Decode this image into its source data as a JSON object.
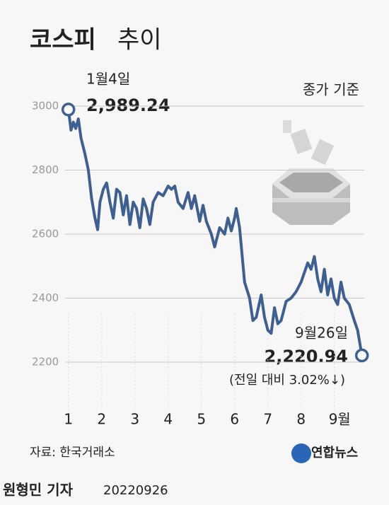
{
  "chart_data": {
    "type": "line",
    "title": "코스피",
    "title_suffix": "추이",
    "note": "종가 기준",
    "annotations": {
      "start_date": "1월4일",
      "start_value": "2,989.24",
      "end_date": "9월26일",
      "end_value": "2,220.94",
      "end_change": "(전일 대비 3.02%↓)"
    },
    "source": "자료: 한국거래소",
    "logo": "연합뉴스",
    "byline": "원형민 기자",
    "date": "20220926",
    "x": [
      1.0,
      1.08,
      1.15,
      1.22,
      1.3,
      1.38,
      1.5,
      1.6,
      1.7,
      1.8,
      1.88,
      1.95,
      2.05,
      2.15,
      2.25,
      2.35,
      2.45,
      2.55,
      2.65,
      2.75,
      2.85,
      2.95,
      3.05,
      3.15,
      3.25,
      3.35,
      3.45,
      3.55,
      3.7,
      3.85,
      4.0,
      4.1,
      4.2,
      4.3,
      4.45,
      4.6,
      4.7,
      4.8,
      4.95,
      5.05,
      5.15,
      5.3,
      5.4,
      5.55,
      5.7,
      5.8,
      5.9,
      6.0,
      6.05,
      6.15,
      6.3,
      6.45,
      6.55,
      6.65,
      6.8,
      6.9,
      7.0,
      7.1,
      7.2,
      7.3,
      7.4,
      7.55,
      7.7,
      7.85,
      8.0,
      8.1,
      8.2,
      8.3,
      8.4,
      8.5,
      8.6,
      8.7,
      8.8,
      8.9,
      9.0,
      9.1,
      9.2,
      9.3,
      9.45,
      9.6,
      9.7,
      9.83
    ],
    "series": [
      {
        "name": "코스피",
        "color": "#3d5f92",
        "values": [
          2989.24,
          2925,
          2950,
          2930,
          2960,
          2900,
          2850,
          2800,
          2710,
          2650,
          2614,
          2700,
          2740,
          2760,
          2700,
          2650,
          2740,
          2730,
          2660,
          2720,
          2630,
          2700,
          2680,
          2620,
          2710,
          2680,
          2630,
          2700,
          2730,
          2720,
          2750,
          2740,
          2750,
          2700,
          2680,
          2730,
          2680,
          2720,
          2640,
          2690,
          2640,
          2600,
          2560,
          2620,
          2600,
          2650,
          2610,
          2650,
          2680,
          2620,
          2450,
          2400,
          2330,
          2340,
          2410,
          2340,
          2300,
          2290,
          2370,
          2320,
          2330,
          2390,
          2400,
          2420,
          2450,
          2480,
          2510,
          2490,
          2530,
          2460,
          2420,
          2490,
          2410,
          2460,
          2400,
          2380,
          2450,
          2400,
          2380,
          2330,
          2300,
          2220.94
        ]
      }
    ],
    "xlim": [
      0.9,
      9.9
    ],
    "xticks": [
      1,
      2,
      3,
      4,
      5,
      6,
      7,
      8,
      {
        "value": 9,
        "label": "9월"
      }
    ],
    "ylim": [
      2200,
      3000
    ],
    "yticks": [
      2200,
      2400,
      2600,
      2800,
      3000
    ],
    "grid": true
  }
}
